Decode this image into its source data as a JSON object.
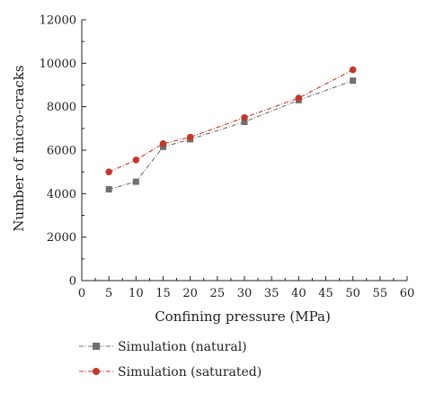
{
  "chart_data": {
    "type": "line",
    "xlabel": "Confining pressure (MPa)",
    "ylabel": "Number of micro-cracks",
    "xlim": [
      0,
      60
    ],
    "ylim": [
      0,
      12000
    ],
    "x_ticks": [
      0,
      5,
      10,
      15,
      20,
      25,
      30,
      35,
      40,
      45,
      50,
      55,
      60
    ],
    "y_ticks": [
      0,
      2000,
      4000,
      6000,
      8000,
      10000,
      12000
    ],
    "grid": false,
    "legend_position": "bottom",
    "series": [
      {
        "name": "Simulation (natural)",
        "color": "#707070",
        "marker": "square",
        "line_style": "dash-dot",
        "x": [
          5,
          10,
          15,
          20,
          30,
          40,
          50
        ],
        "y": [
          4200,
          4550,
          6150,
          6500,
          7300,
          8300,
          9200
        ]
      },
      {
        "name": "Simulation (saturated)",
        "color": "#c0392b",
        "marker": "circle",
        "line_style": "dash-dot",
        "x": [
          5,
          10,
          15,
          20,
          30,
          40,
          50
        ],
        "y": [
          5000,
          5550,
          6300,
          6600,
          7500,
          8400,
          9700
        ]
      }
    ]
  }
}
